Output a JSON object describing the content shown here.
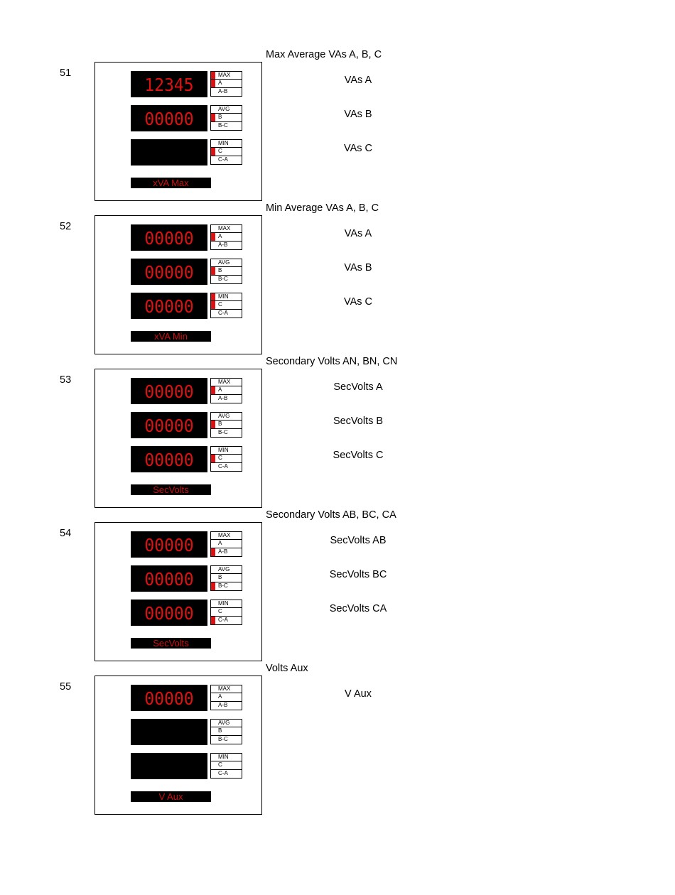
{
  "sections": [
    {
      "number": "51",
      "title": "Max Average VAs A, B, C",
      "label": "xVA Max",
      "displays": [
        "12345",
        "00000",
        ""
      ],
      "indicators": [
        {
          "rows": [
            "MAX",
            "A",
            "A-B"
          ],
          "active": [
            0,
            1
          ]
        },
        {
          "rows": [
            "AVG",
            "B",
            "B-C"
          ],
          "active": [
            1
          ]
        },
        {
          "rows": [
            "MIN",
            "C",
            "C-A"
          ],
          "active": [
            1
          ]
        }
      ],
      "descriptions": [
        "VAs A",
        "VAs B",
        "VAs C"
      ]
    },
    {
      "number": "52",
      "title": "Min Average VAs A, B, C",
      "label": "xVA Min",
      "displays": [
        "00000",
        "00000",
        "00000"
      ],
      "indicators": [
        {
          "rows": [
            "MAX",
            "A",
            "A-B"
          ],
          "active": [
            1
          ]
        },
        {
          "rows": [
            "AVG",
            "B",
            "B-C"
          ],
          "active": [
            1
          ]
        },
        {
          "rows": [
            "MIN",
            "C",
            "C-A"
          ],
          "active": [
            0,
            1
          ]
        }
      ],
      "descriptions": [
        "VAs A",
        "VAs B",
        "VAs C"
      ]
    },
    {
      "number": "53",
      "title": "Secondary Volts AN, BN, CN",
      "label": "SecVolts",
      "displays": [
        "00000",
        "00000",
        "00000"
      ],
      "indicators": [
        {
          "rows": [
            "MAX",
            "A",
            "A-B"
          ],
          "active": [
            1
          ]
        },
        {
          "rows": [
            "AVG",
            "B",
            "B-C"
          ],
          "active": [
            1
          ]
        },
        {
          "rows": [
            "MIN",
            "C",
            "C-A"
          ],
          "active": [
            1
          ]
        }
      ],
      "descriptions": [
        "SecVolts A",
        "SecVolts B",
        "SecVolts C"
      ]
    },
    {
      "number": "54",
      "title": "Secondary Volts AB, BC, CA",
      "label": "SecVolts",
      "displays": [
        "00000",
        "00000",
        "00000"
      ],
      "indicators": [
        {
          "rows": [
            "MAX",
            "A",
            "A-B"
          ],
          "active": [
            2
          ]
        },
        {
          "rows": [
            "AVG",
            "B",
            "B-C"
          ],
          "active": [
            2
          ]
        },
        {
          "rows": [
            "MIN",
            "C",
            "C-A"
          ],
          "active": [
            2
          ]
        }
      ],
      "descriptions": [
        "SecVolts AB",
        "SecVolts BC",
        "SecVolts CA"
      ]
    },
    {
      "number": "55",
      "title": "Volts Aux",
      "label": "V Aux",
      "displays": [
        "00000",
        "",
        ""
      ],
      "indicators": [
        {
          "rows": [
            "MAX",
            "A",
            "A-B"
          ],
          "active": []
        },
        {
          "rows": [
            "AVG",
            "B",
            "B-C"
          ],
          "active": []
        },
        {
          "rows": [
            "MIN",
            "C",
            "C-A"
          ],
          "active": []
        }
      ],
      "descriptions": [
        "V Aux",
        "",
        ""
      ]
    }
  ]
}
